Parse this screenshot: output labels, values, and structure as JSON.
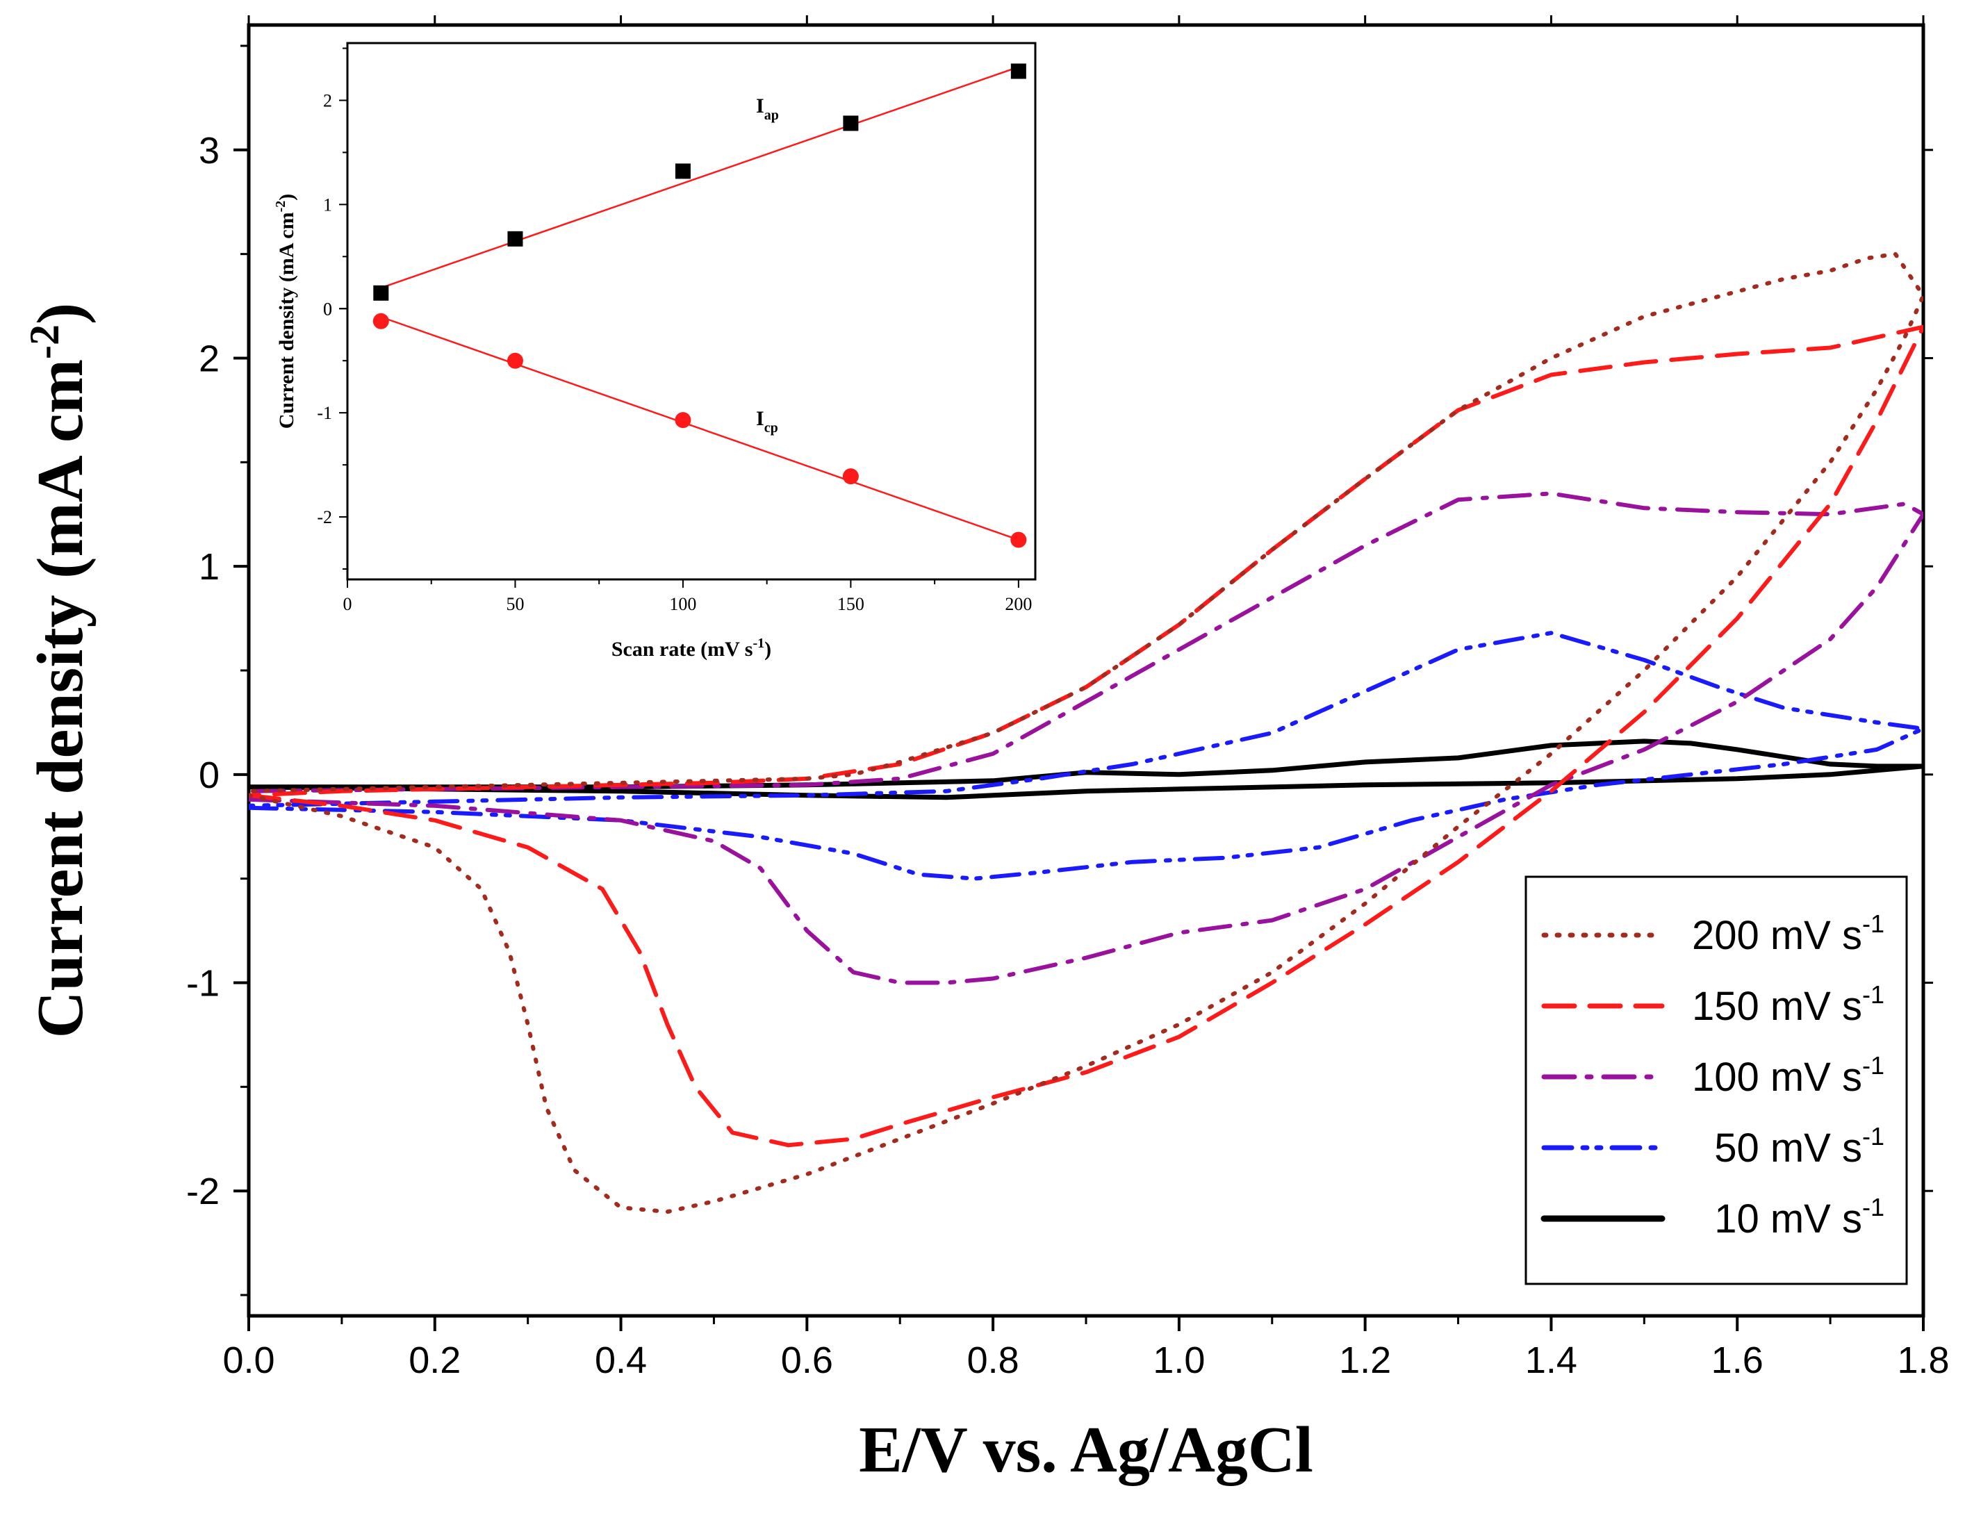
{
  "chart_data": [
    {
      "type": "line",
      "title": "",
      "xlabel": "E/V vs. Ag/AgCl",
      "ylabel": "Current density (mA cm",
      "ylabel_sup": "-2",
      "ylabel_close": ")",
      "xlim": [
        0.0,
        1.8
      ],
      "ylim": [
        -2.6,
        3.6
      ],
      "xticks": [
        "0.0",
        "0.2",
        "0.4",
        "0.6",
        "0.8",
        "1.0",
        "1.2",
        "1.4",
        "1.6",
        "1.8"
      ],
      "yticks": [
        "-2",
        "-1",
        "0",
        "1",
        "2",
        "3"
      ],
      "legend_position": "bottom-right",
      "series": [
        {
          "name": "200 mV s",
          "sup": "-1",
          "color": "#a52a1e",
          "style": "dotted",
          "x": [
            0.0,
            0.1,
            0.2,
            0.25,
            0.28,
            0.3,
            0.32,
            0.35,
            0.4,
            0.45,
            0.5,
            0.6,
            0.7,
            0.8,
            0.9,
            1.0,
            1.1,
            1.2,
            1.3,
            1.4,
            1.5,
            1.6,
            1.7,
            1.75,
            1.78,
            1.8,
            1.77,
            1.74,
            1.7,
            1.65,
            1.6,
            1.5,
            1.4,
            1.3,
            1.2,
            1.1,
            1.0,
            0.9,
            0.8,
            0.7,
            0.65,
            0.6,
            0.5,
            0.4,
            0.3,
            0.2,
            0.1,
            0.0
          ],
          "y": [
            -0.1,
            -0.2,
            -0.35,
            -0.55,
            -0.85,
            -1.2,
            -1.6,
            -1.9,
            -2.08,
            -2.1,
            -2.05,
            -1.92,
            -1.75,
            -1.58,
            -1.4,
            -1.2,
            -0.95,
            -0.62,
            -0.25,
            0.1,
            0.5,
            0.95,
            1.5,
            1.85,
            2.1,
            2.3,
            2.5,
            2.48,
            2.42,
            2.38,
            2.32,
            2.2,
            2.0,
            1.75,
            1.42,
            1.08,
            0.72,
            0.42,
            0.2,
            0.06,
            0.0,
            -0.02,
            -0.03,
            -0.04,
            -0.05,
            -0.06,
            -0.07,
            -0.08
          ]
        },
        {
          "name": "150 mV s",
          "sup": "-1",
          "color": "#ff1a1a",
          "style": "dashed",
          "x": [
            0.0,
            0.1,
            0.2,
            0.3,
            0.38,
            0.42,
            0.45,
            0.48,
            0.52,
            0.58,
            0.65,
            0.7,
            0.8,
            0.9,
            1.0,
            1.1,
            1.2,
            1.3,
            1.4,
            1.5,
            1.6,
            1.7,
            1.75,
            1.8,
            1.77,
            1.7,
            1.6,
            1.5,
            1.4,
            1.3,
            1.2,
            1.1,
            1.0,
            0.9,
            0.8,
            0.7,
            0.6,
            0.5,
            0.4,
            0.3,
            0.2,
            0.1,
            0.0
          ],
          "y": [
            -0.1,
            -0.15,
            -0.22,
            -0.35,
            -0.55,
            -0.85,
            -1.2,
            -1.5,
            -1.72,
            -1.78,
            -1.75,
            -1.68,
            -1.55,
            -1.43,
            -1.26,
            -1.0,
            -0.72,
            -0.42,
            -0.08,
            0.3,
            0.75,
            1.3,
            1.7,
            2.15,
            2.12,
            2.05,
            2.02,
            1.98,
            1.92,
            1.75,
            1.42,
            1.08,
            0.72,
            0.42,
            0.2,
            0.05,
            -0.02,
            -0.04,
            -0.05,
            -0.06,
            -0.07,
            -0.08,
            -0.1
          ]
        },
        {
          "name": "100 mV s",
          "sup": "-1",
          "color": "#99119c",
          "style": "dashdot",
          "x": [
            0.0,
            0.2,
            0.4,
            0.5,
            0.55,
            0.6,
            0.65,
            0.7,
            0.75,
            0.8,
            0.9,
            1.0,
            1.1,
            1.2,
            1.3,
            1.4,
            1.5,
            1.6,
            1.7,
            1.75,
            1.8,
            1.78,
            1.7,
            1.6,
            1.5,
            1.4,
            1.3,
            1.2,
            1.1,
            1.0,
            0.9,
            0.8,
            0.7,
            0.6,
            0.4,
            0.2,
            0.0
          ],
          "y": [
            -0.12,
            -0.15,
            -0.22,
            -0.32,
            -0.45,
            -0.75,
            -0.95,
            -1.0,
            -1.0,
            -0.98,
            -0.88,
            -0.76,
            -0.7,
            -0.55,
            -0.3,
            -0.05,
            0.12,
            0.35,
            0.65,
            0.9,
            1.25,
            1.3,
            1.25,
            1.26,
            1.28,
            1.35,
            1.32,
            1.1,
            0.85,
            0.6,
            0.35,
            0.1,
            -0.02,
            -0.05,
            -0.06,
            -0.07,
            -0.08
          ]
        },
        {
          "name": "50 mV s",
          "sup": "-1",
          "color": "#1a1aff",
          "style": "dashdotdot",
          "x": [
            0.0,
            0.2,
            0.4,
            0.55,
            0.65,
            0.72,
            0.78,
            0.85,
            0.95,
            1.05,
            1.15,
            1.25,
            1.35,
            1.45,
            1.55,
            1.65,
            1.75,
            1.8,
            1.75,
            1.65,
            1.58,
            1.5,
            1.4,
            1.3,
            1.2,
            1.1,
            0.95,
            0.85,
            0.75,
            0.6,
            0.4,
            0.2,
            0.0
          ],
          "y": [
            -0.16,
            -0.18,
            -0.22,
            -0.3,
            -0.38,
            -0.48,
            -0.5,
            -0.47,
            -0.42,
            -0.4,
            -0.35,
            -0.22,
            -0.12,
            -0.05,
            0.0,
            0.05,
            0.12,
            0.22,
            0.25,
            0.32,
            0.42,
            0.55,
            0.68,
            0.6,
            0.4,
            0.2,
            0.05,
            -0.02,
            -0.08,
            -0.1,
            -0.11,
            -0.13,
            -0.15
          ]
        },
        {
          "name": "10 mV s",
          "sup": "-1",
          "color": "#000000",
          "style": "solid",
          "x": [
            0.0,
            0.2,
            0.4,
            0.6,
            0.75,
            0.8,
            0.9,
            1.0,
            1.2,
            1.4,
            1.6,
            1.7,
            1.8,
            1.75,
            1.7,
            1.6,
            1.55,
            1.5,
            1.4,
            1.3,
            1.2,
            1.1,
            1.0,
            0.9,
            0.8,
            0.6,
            0.4,
            0.2,
            0.0
          ],
          "y": [
            -0.06,
            -0.07,
            -0.08,
            -0.1,
            -0.11,
            -0.1,
            -0.08,
            -0.07,
            -0.05,
            -0.04,
            -0.02,
            0.0,
            0.04,
            0.04,
            0.05,
            0.12,
            0.15,
            0.16,
            0.14,
            0.08,
            0.06,
            0.02,
            0.0,
            0.01,
            -0.03,
            -0.05,
            -0.06,
            -0.06,
            -0.06
          ]
        }
      ]
    },
    {
      "type": "scatter",
      "title": "",
      "xlabel": "Scan rate (mV s",
      "xlabel_sup": "-1",
      "xlabel_close": ")",
      "ylabel": "Current density (mA cm",
      "ylabel_sup": "-2",
      "ylabel_close": ")",
      "xlim": [
        0,
        205
      ],
      "ylim": [
        -2.6,
        2.55
      ],
      "xticks": [
        "0",
        "50",
        "100",
        "150",
        "200"
      ],
      "yticks": [
        "-2",
        "-1",
        "0",
        "1",
        "2"
      ],
      "series": [
        {
          "name": "I",
          "sub": "ap",
          "marker": "square",
          "color": "#000000",
          "x": [
            10,
            50,
            100,
            150,
            200
          ],
          "y": [
            0.15,
            0.67,
            1.32,
            1.78,
            2.28
          ],
          "fit": [
            [
              10,
              0.2
            ],
            [
              200,
              2.32
            ]
          ]
        },
        {
          "name": "I",
          "sub": "cp",
          "marker": "circle",
          "color": "#ff1a1a",
          "x": [
            10,
            50,
            100,
            150,
            200
          ],
          "y": [
            -0.12,
            -0.5,
            -1.07,
            -1.61,
            -2.22
          ],
          "fit": [
            [
              10,
              -0.08
            ],
            [
              200,
              -2.22
            ]
          ]
        }
      ]
    }
  ]
}
